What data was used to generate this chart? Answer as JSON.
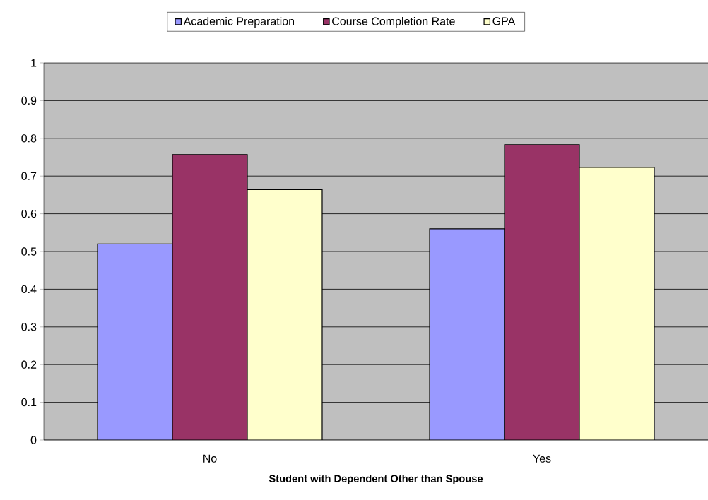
{
  "chart_data": {
    "type": "bar",
    "xlabel": "**Student with Dependent Other than Spouse**",
    "categories": [
      "No",
      "Yes"
    ],
    "series": [
      {
        "name": "Academic Preparation",
        "color": "#9999ff",
        "values": [
          0.52,
          0.56
        ]
      },
      {
        "name": "Course Completion Rate",
        "color": "#993366",
        "values": [
          0.757,
          0.783
        ]
      },
      {
        "name": "GPA",
        "color": "#ffffcc",
        "values": [
          0.664,
          0.723
        ]
      }
    ],
    "ylim": [
      0,
      1
    ],
    "yticks": [
      0,
      0.1,
      0.2,
      0.3,
      0.4,
      0.5,
      0.6,
      0.7,
      0.8,
      0.9,
      1
    ],
    "grid": "y",
    "legend": "top"
  }
}
